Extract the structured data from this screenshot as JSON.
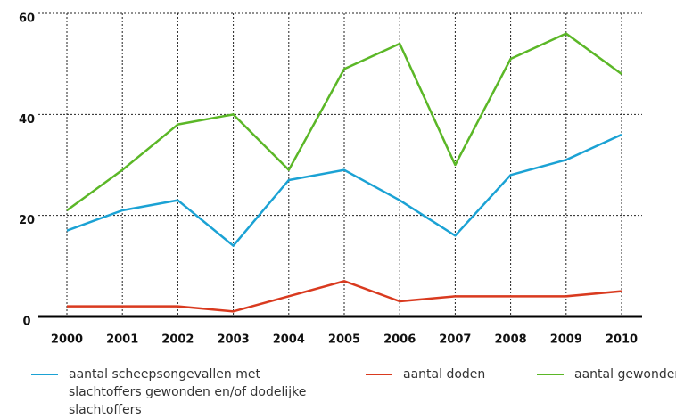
{
  "chart_data": {
    "type": "line",
    "categories": [
      "2000",
      "2001",
      "2002",
      "2003",
      "2004",
      "2005",
      "2006",
      "2007",
      "2008",
      "2009",
      "2010"
    ],
    "series": [
      {
        "name": "aantal scheepsongevallen met slachtoffers gewonden en/of dodelijke slachtoffers",
        "color": "#1ba2d4",
        "values": [
          17,
          21,
          23,
          14,
          27,
          29,
          23,
          16,
          28,
          31,
          36
        ]
      },
      {
        "name": "aantal doden",
        "color": "#d93a1f",
        "values": [
          2,
          2,
          2,
          1,
          4,
          7,
          3,
          4,
          4,
          4,
          5
        ]
      },
      {
        "name": "aantal gewonden",
        "color": "#5bb727",
        "values": [
          21,
          29,
          38,
          40,
          29,
          49,
          54,
          30,
          51,
          56,
          48
        ]
      }
    ],
    "ylim": [
      0,
      60
    ],
    "yticks": [
      0,
      20,
      40,
      60
    ],
    "grid": true
  }
}
